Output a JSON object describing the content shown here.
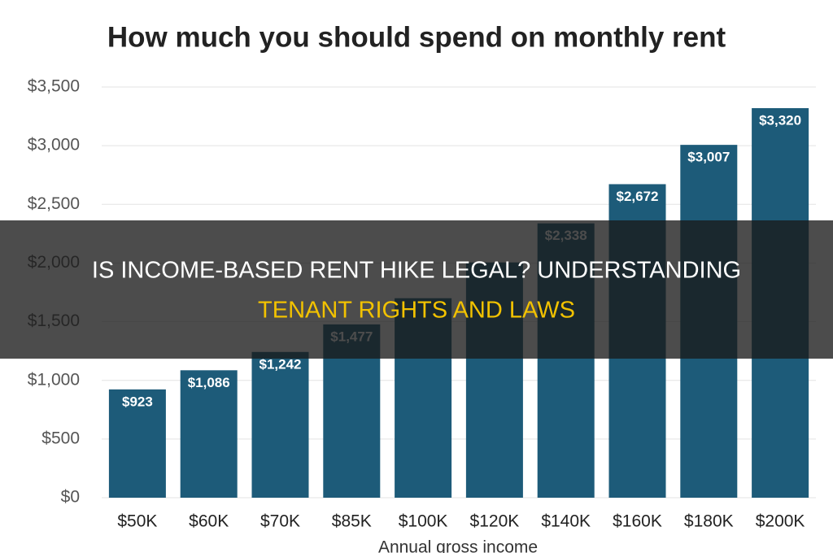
{
  "chart_data": {
    "type": "bar",
    "title": "How much you should spend on monthly rent",
    "x_label": "Annual gross income",
    "categories": [
      "$50K",
      "$60K",
      "$70K",
      "$85K",
      "$100K",
      "$120K",
      "$140K",
      "$160K",
      "$180K",
      "$200K"
    ],
    "values": [
      923,
      1086,
      1242,
      1477,
      1700,
      2005,
      2338,
      2672,
      3007,
      3320
    ],
    "value_labels": [
      "$923",
      "$1,086",
      "$1,242",
      "$1,477",
      null,
      null,
      "$2,338",
      "$2,672",
      "$3,007",
      "$3,320"
    ],
    "color": "#1d5b79",
    "ylim": [
      0,
      3500
    ],
    "yticks": [
      {
        "value": 0,
        "label": "$0"
      },
      {
        "value": 500,
        "label": "$500"
      },
      {
        "value": 1000,
        "label": "$1,000"
      },
      {
        "value": 1500,
        "label": "$1,500"
      },
      {
        "value": 2000,
        "label": "$2,000"
      },
      {
        "value": 2500,
        "label": "$2,500"
      },
      {
        "value": 3000,
        "label": "$3,000"
      },
      {
        "value": 3500,
        "label": "$3,500"
      }
    ],
    "grid": true
  },
  "overlay": {
    "line1": "IS INCOME-BASED RENT HIKE LEGAL? UNDERSTANDING",
    "line2": "TENANT RIGHTS AND LAWS"
  }
}
